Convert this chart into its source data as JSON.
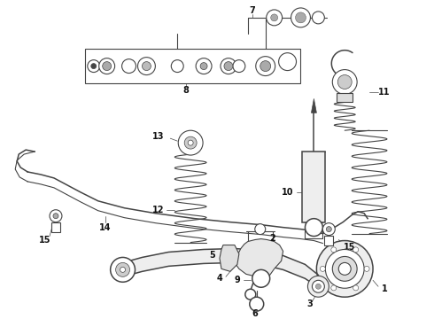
{
  "bg_color": "#ffffff",
  "line_color": "#444444",
  "label_color": "#111111",
  "fig_width": 4.9,
  "fig_height": 3.6,
  "dpi": 100
}
